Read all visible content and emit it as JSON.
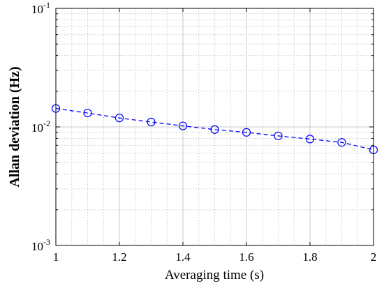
{
  "chart_data": {
    "type": "line",
    "xlabel": "Averaging time (s)",
    "ylabel": "Allan deviation (Hz)",
    "xlim": [
      1,
      2
    ],
    "ylim": [
      0.001,
      0.1
    ],
    "yscale": "log",
    "grid": true,
    "x_ticks": [
      1,
      1.2,
      1.4,
      1.6,
      1.8,
      2
    ],
    "x_tick_labels": [
      "1",
      "1.2",
      "1.4",
      "1.6",
      "1.8",
      "2"
    ],
    "y_ticks": [
      {
        "base": "10",
        "exp": "-3"
      },
      {
        "base": "10",
        "exp": "-2"
      },
      {
        "base": "10",
        "exp": "-1"
      }
    ],
    "series": [
      {
        "line_style": "dashed",
        "marker": "circle",
        "color": "#0000ff",
        "x": [
          1.0,
          1.1,
          1.2,
          1.3,
          1.4,
          1.5,
          1.6,
          1.7,
          1.8,
          1.9,
          2.0
        ],
        "y": [
          0.0143,
          0.0131,
          0.0119,
          0.011,
          0.0102,
          0.0095,
          0.009,
          0.0084,
          0.0079,
          0.0074,
          0.0064
        ]
      }
    ]
  }
}
